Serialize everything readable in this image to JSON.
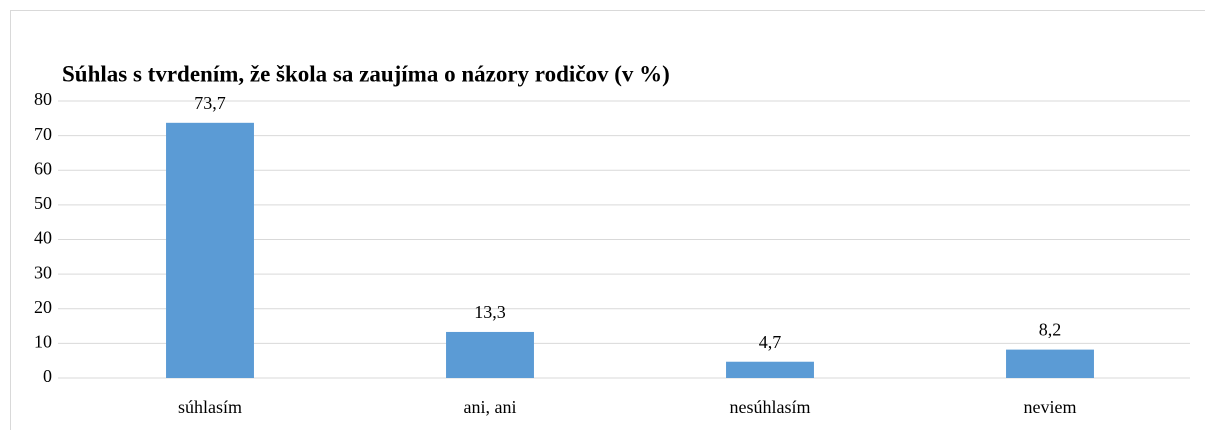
{
  "chart_data": {
    "type": "bar",
    "title": "Súhlas s tvrdením, že škola sa zaujíma o názory rodičov (v %)",
    "categories": [
      "súhlasím",
      "ani, ani",
      "nesúhlasím",
      "neviem"
    ],
    "values": [
      73.7,
      13.3,
      4.7,
      8.2
    ],
    "value_labels": [
      "73,7",
      "13,3",
      "4,7",
      "8,2"
    ],
    "color": "#5b9bd5",
    "ylim": [
      0,
      80
    ],
    "yticks": [
      0,
      10,
      20,
      30,
      40,
      50,
      60,
      70,
      80
    ],
    "grid": true
  }
}
